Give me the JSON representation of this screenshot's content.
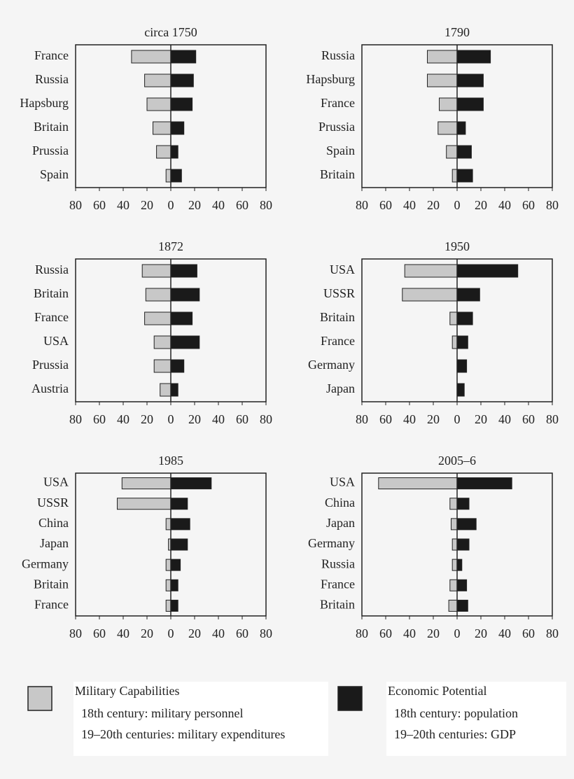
{
  "chart_data": [
    {
      "type": "butterfly",
      "title": "circa 1750",
      "categories": [
        "France",
        "Russia",
        "Hapsburg",
        "Britain",
        "Prussia",
        "Spain"
      ],
      "series": [
        {
          "color": "#c8c8c8",
          "values": [
            33,
            22,
            20,
            15,
            12,
            4
          ]
        },
        {
          "color": "#1a1a1a",
          "values": [
            21,
            19,
            18,
            11,
            6,
            9
          ]
        }
      ],
      "xlim": [
        -80,
        80
      ],
      "xticks": [
        {
          "value": -80,
          "label": "80"
        },
        {
          "value": -60,
          "label": "60"
        },
        {
          "value": -40,
          "label": "40"
        },
        {
          "value": -20,
          "label": "20"
        },
        0,
        20,
        40,
        60,
        80
      ]
    },
    {
      "type": "butterfly",
      "title": "1790",
      "categories": [
        "Russia",
        "Hapsburg",
        "France",
        "Prussia",
        "Spain",
        "Britain"
      ],
      "series": [
        {
          "color": "#c8c8c8",
          "values": [
            25,
            25,
            15,
            16,
            9,
            4
          ]
        },
        {
          "color": "#1a1a1a",
          "values": [
            28,
            22,
            22,
            7,
            12,
            13
          ]
        }
      ],
      "xlim": [
        -80,
        80
      ],
      "xticks": [
        {
          "value": -80,
          "label": "80"
        },
        {
          "value": -60,
          "label": "60"
        },
        {
          "value": -40,
          "label": "40"
        },
        {
          "value": -20,
          "label": "20"
        },
        0,
        20,
        40,
        60,
        80
      ]
    },
    {
      "type": "butterfly",
      "title": "1872",
      "categories": [
        "Russia",
        "Britain",
        "France",
        "USA",
        "Prussia",
        "Austria"
      ],
      "series": [
        {
          "color": "#c8c8c8",
          "values": [
            24,
            21,
            22,
            14,
            14,
            9
          ]
        },
        {
          "color": "#1a1a1a",
          "values": [
            22,
            24,
            18,
            24,
            11,
            6
          ]
        }
      ],
      "xlim": [
        -80,
        80
      ],
      "xticks": [
        {
          "value": -80,
          "label": "80"
        },
        {
          "value": -60,
          "label": "60"
        },
        {
          "value": -40,
          "label": "40"
        },
        {
          "value": -20,
          "label": "20"
        },
        0,
        20,
        40,
        60,
        80
      ]
    },
    {
      "type": "butterfly",
      "title": "1950",
      "categories": [
        "USA",
        "USSR",
        "Britain",
        "France",
        "Germany",
        "Japan"
      ],
      "series": [
        {
          "color": "#c8c8c8",
          "values": [
            44,
            46,
            6,
            4,
            0,
            0
          ]
        },
        {
          "color": "#1a1a1a",
          "values": [
            51,
            19,
            13,
            9,
            8,
            6
          ]
        }
      ],
      "xlim": [
        -80,
        80
      ],
      "xticks": [
        {
          "value": -80,
          "label": "80"
        },
        {
          "value": -60,
          "label": "60"
        },
        {
          "value": -40,
          "label": "40"
        },
        {
          "value": -20,
          "label": "20"
        },
        0,
        20,
        40,
        60,
        80
      ]
    },
    {
      "type": "butterfly",
      "title": "1985",
      "categories": [
        "USA",
        "USSR",
        "China",
        "Japan",
        "Germany",
        "Britain",
        "France"
      ],
      "series": [
        {
          "color": "#c8c8c8",
          "values": [
            41,
            45,
            4,
            2,
            4,
            4,
            4
          ]
        },
        {
          "color": "#1a1a1a",
          "values": [
            34,
            14,
            16,
            14,
            8,
            6,
            6
          ]
        }
      ],
      "xlim": [
        -80,
        80
      ],
      "xticks": [
        {
          "value": -80,
          "label": "80"
        },
        {
          "value": -60,
          "label": "60"
        },
        {
          "value": -40,
          "label": "40"
        },
        {
          "value": -20,
          "label": "20"
        },
        0,
        20,
        40,
        60,
        80
      ]
    },
    {
      "type": "butterfly",
      "title": "2005–6",
      "categories": [
        "USA",
        "China",
        "Japan",
        "Germany",
        "Russia",
        "France",
        "Britain"
      ],
      "series": [
        {
          "color": "#c8c8c8",
          "values": [
            66,
            6,
            5,
            4,
            4,
            6,
            7
          ]
        },
        {
          "color": "#1a1a1a",
          "values": [
            46,
            10,
            16,
            10,
            4,
            8,
            9
          ]
        }
      ],
      "xlim": [
        -80,
        80
      ],
      "xticks": [
        {
          "value": -80,
          "label": "80"
        },
        {
          "value": -60,
          "label": "60"
        },
        {
          "value": -40,
          "label": "40"
        },
        {
          "value": -20,
          "label": "20"
        },
        0,
        20,
        40,
        60,
        80
      ]
    }
  ],
  "legend": {
    "items": [
      {
        "name": "Military Capabilities",
        "color": "#c8c8c8",
        "notes": [
          "18th century: military personnel",
          "19–20th centuries: military expenditures"
        ]
      },
      {
        "name": "Economic Potential",
        "color": "#1a1a1a",
        "notes": [
          "18th century: population",
          "19–20th centuries: GDP"
        ]
      }
    ]
  }
}
